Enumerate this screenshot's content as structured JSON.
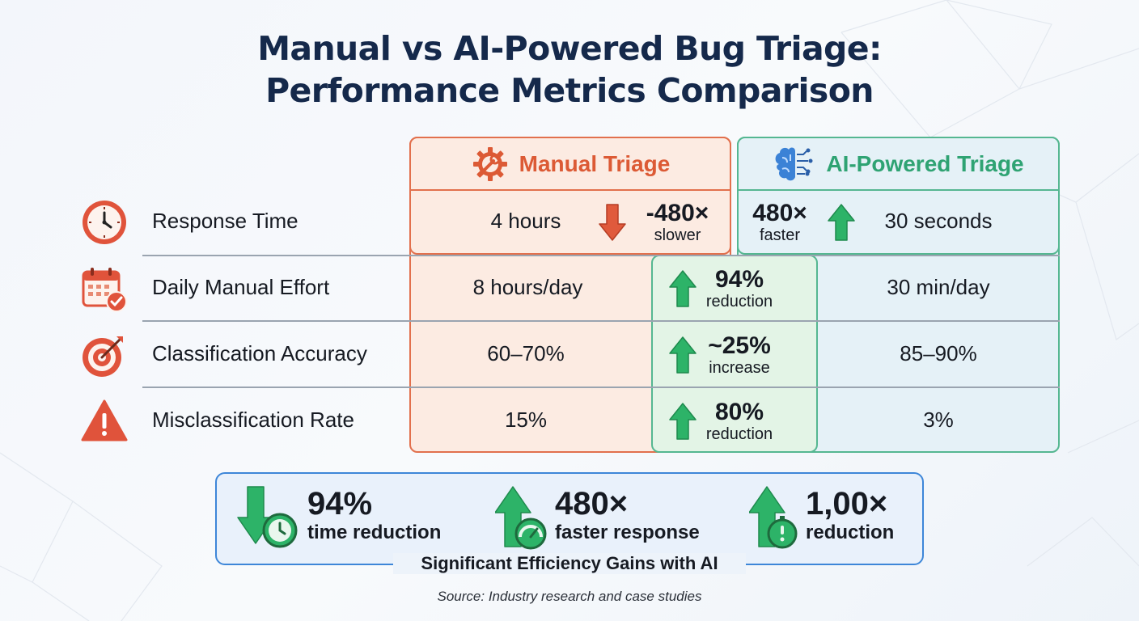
{
  "title_line1": "Manual vs AI-Powered Bug Triage:",
  "title_line2": "Performance Metrics Comparison",
  "colors": {
    "manual": "#dc5a35",
    "ai": "#2fa373",
    "title": "#15294b",
    "summary_border": "#3d86d8",
    "arrow_up": "#2db368",
    "arrow_down": "#e05a3c"
  },
  "chart_data": {
    "type": "table",
    "columns": [
      "Manual Triage",
      "AI-Powered Triage"
    ],
    "column_icons": [
      "gear-wrench-icon",
      "ai-brain-icon"
    ],
    "rows": [
      {
        "metric": "Response Time",
        "icon": "clock-icon",
        "manual": "4 hours",
        "ai": "30 seconds",
        "manual_delta": {
          "value": "-480×",
          "label": "slower",
          "direction": "down"
        },
        "ai_delta": {
          "value": "480×",
          "label": "faster",
          "direction": "up"
        }
      },
      {
        "metric": "Daily Manual Effort",
        "icon": "calendar-check-icon",
        "manual": "8 hours/day",
        "ai": "30 min/day",
        "delta": {
          "value": "94%",
          "label": "reduction",
          "direction": "up"
        }
      },
      {
        "metric": "Classification Accuracy",
        "icon": "target-icon",
        "manual": "60–70%",
        "ai": "85–90%",
        "delta": {
          "value": "~25%",
          "label": "increase",
          "direction": "up"
        }
      },
      {
        "metric": "Misclassification Rate",
        "icon": "warning-icon",
        "manual": "15%",
        "ai": "3%",
        "delta": {
          "value": "80%",
          "label": "reduction",
          "direction": "up"
        }
      }
    ]
  },
  "summary": {
    "items": [
      {
        "value": "94%",
        "label": "time reduction",
        "icon": "down-arrow-clock-icon"
      },
      {
        "value": "480×",
        "label": "faster response",
        "icon": "up-arrow-gauge-icon"
      },
      {
        "value": "1,00×",
        "label": "reduction",
        "icon": "up-arrow-stopwatch-icon"
      }
    ],
    "caption": "Significant Efficiency Gains with AI"
  },
  "source": "Source: Industry research and case studies"
}
